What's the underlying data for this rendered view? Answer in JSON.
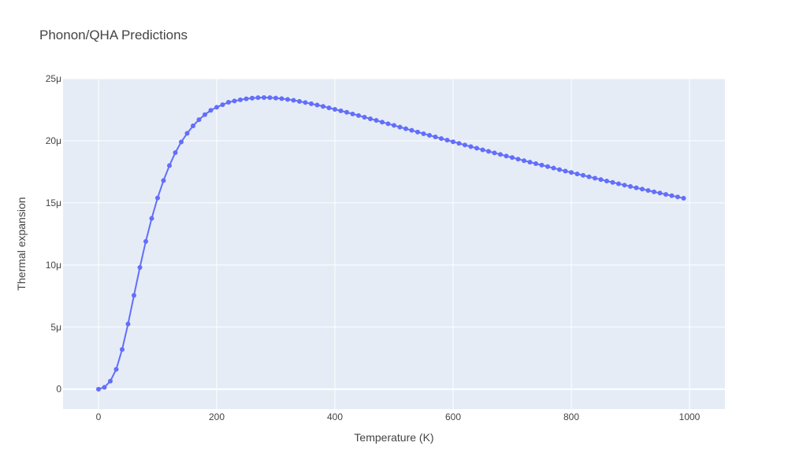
{
  "chart_data": {
    "type": "line",
    "title": "Phonon/QHA Predictions",
    "xlabel": "Temperature (K)",
    "ylabel": "Thermal expansion",
    "xlim": [
      -60,
      1060
    ],
    "ylim": [
      -1.6e-06,
      2.5e-05
    ],
    "x_ticks": [
      {
        "value": 0,
        "label": "0"
      },
      {
        "value": 200,
        "label": "200"
      },
      {
        "value": 400,
        "label": "400"
      },
      {
        "value": 600,
        "label": "600"
      },
      {
        "value": 800,
        "label": "800"
      },
      {
        "value": 1000,
        "label": "1000"
      }
    ],
    "y_ticks": [
      {
        "value": 0,
        "label": "0"
      },
      {
        "value": 5e-06,
        "label": "5μ"
      },
      {
        "value": 1e-05,
        "label": "10μ"
      },
      {
        "value": 1.5e-05,
        "label": "15μ"
      },
      {
        "value": 2e-05,
        "label": "20μ"
      },
      {
        "value": 2.5e-05,
        "label": "25μ"
      }
    ],
    "grid": true,
    "colors": {
      "line": "#636efa",
      "plot_bg": "#e5ecf6",
      "grid": "#ffffff"
    },
    "series": [
      {
        "mode": "lines+markers",
        "x": [
          0,
          10,
          20,
          30,
          40,
          50,
          60,
          70,
          80,
          90,
          100,
          110,
          120,
          130,
          140,
          150,
          160,
          170,
          180,
          190,
          200,
          210,
          220,
          230,
          240,
          250,
          260,
          270,
          280,
          290,
          300,
          310,
          320,
          330,
          340,
          350,
          360,
          370,
          380,
          390,
          400,
          410,
          420,
          430,
          440,
          450,
          460,
          470,
          480,
          490,
          500,
          510,
          520,
          530,
          540,
          550,
          560,
          570,
          580,
          590,
          600,
          610,
          620,
          630,
          640,
          650,
          660,
          670,
          680,
          690,
          700,
          710,
          720,
          730,
          740,
          750,
          760,
          770,
          780,
          790,
          800,
          810,
          820,
          830,
          840,
          850,
          860,
          870,
          880,
          890,
          900,
          910,
          920,
          930,
          940,
          950,
          960,
          970,
          980,
          990
        ],
        "y": [
          0,
          1.5e-07,
          6.5e-07,
          1.6e-06,
          3.2e-06,
          5.25e-06,
          7.55e-06,
          9.8e-06,
          1.19e-05,
          1.375e-05,
          1.54e-05,
          1.68e-05,
          1.8e-05,
          1.905e-05,
          1.99e-05,
          2.06e-05,
          2.12e-05,
          2.17e-05,
          2.21e-05,
          2.245e-05,
          2.27e-05,
          2.29e-05,
          2.31e-05,
          2.32e-05,
          2.33e-05,
          2.338e-05,
          2.343e-05,
          2.347e-05,
          2.348e-05,
          2.347e-05,
          2.344e-05,
          2.339e-05,
          2.333e-05,
          2.326e-05,
          2.317e-05,
          2.308e-05,
          2.298e-05,
          2.288e-05,
          2.277e-05,
          2.265e-05,
          2.253e-05,
          2.241e-05,
          2.229e-05,
          2.216e-05,
          2.203e-05,
          2.19e-05,
          2.177e-05,
          2.164e-05,
          2.15e-05,
          2.137e-05,
          2.124e-05,
          2.11e-05,
          2.097e-05,
          2.084e-05,
          2.07e-05,
          2.057e-05,
          2.044e-05,
          2.031e-05,
          2.018e-05,
          2.005e-05,
          1.992e-05,
          1.979e-05,
          1.966e-05,
          1.953e-05,
          1.94e-05,
          1.927e-05,
          1.915e-05,
          1.902e-05,
          1.89e-05,
          1.877e-05,
          1.865e-05,
          1.852e-05,
          1.84e-05,
          1.828e-05,
          1.816e-05,
          1.804e-05,
          1.792e-05,
          1.78e-05,
          1.768e-05,
          1.756e-05,
          1.745e-05,
          1.733e-05,
          1.722e-05,
          1.71e-05,
          1.699e-05,
          1.688e-05,
          1.676e-05,
          1.665e-05,
          1.654e-05,
          1.643e-05,
          1.632e-05,
          1.621e-05,
          1.611e-05,
          1.6e-05,
          1.589e-05,
          1.579e-05,
          1.568e-05,
          1.558e-05,
          1.548e-05,
          1.537e-05
        ]
      }
    ]
  }
}
